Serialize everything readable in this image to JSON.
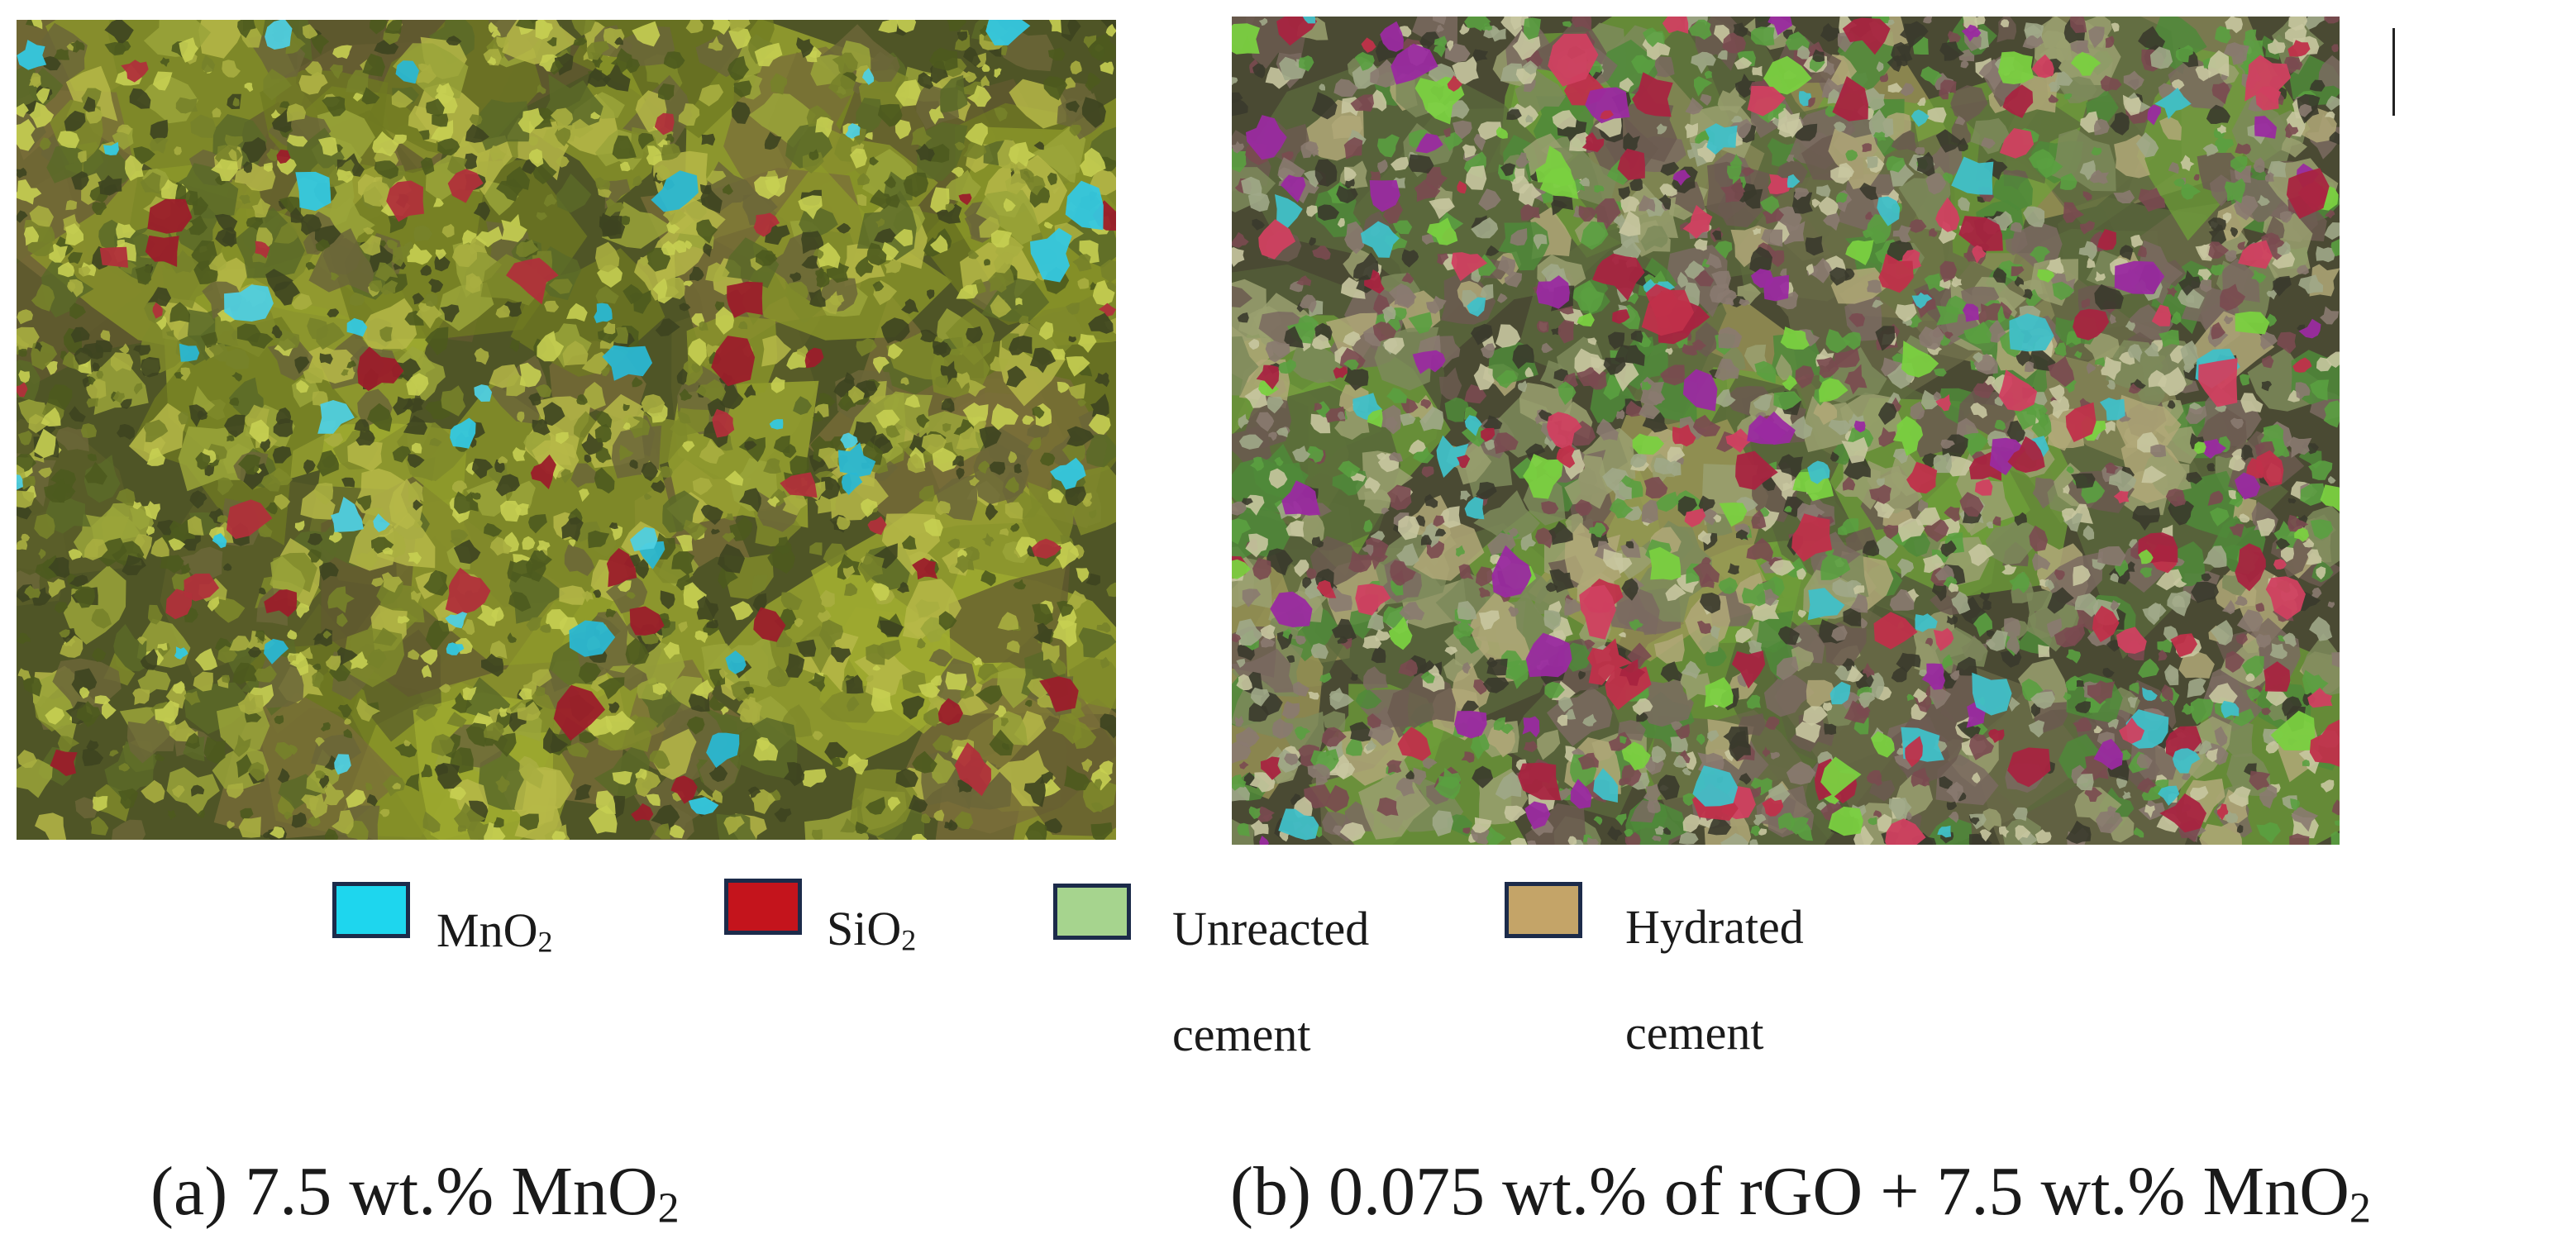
{
  "figure": {
    "panels": [
      {
        "id": "a",
        "caption_pre": "(a) 7.5 wt.% MnO",
        "caption_sub": "2",
        "caption_post": ""
      },
      {
        "id": "b",
        "caption_pre": "(b) 0.075 wt.% of rGO + 7.5 wt.% MnO",
        "caption_sub": "2",
        "caption_post": ""
      }
    ],
    "legend": [
      {
        "label": "MnO",
        "label_sub": "2",
        "color": "#1ed6ee"
      },
      {
        "label": "SiO",
        "label_sub": "2",
        "color": "#c4141c"
      },
      {
        "label": "Unreacted",
        "label_line2": "cement",
        "color": "#a6d48e"
      },
      {
        "label": "Hydrated",
        "label_line2": "cement",
        "color": "#c4a468"
      }
    ]
  }
}
